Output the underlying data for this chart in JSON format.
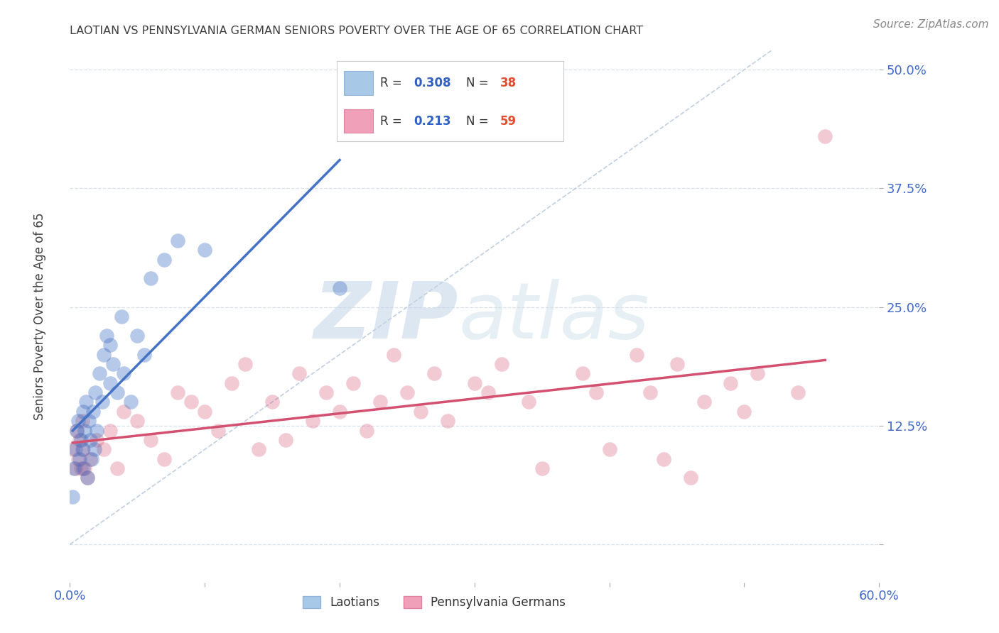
{
  "title": "LAOTIAN VS PENNSYLVANIA GERMAN SENIORS POVERTY OVER THE AGE OF 65 CORRELATION CHART",
  "source": "Source: ZipAtlas.com",
  "ylabel": "Seniors Poverty Over the Age of 65",
  "watermark_zip": "ZIP",
  "watermark_atlas": "atlas",
  "xlim": [
    0.0,
    0.6
  ],
  "ylim": [
    -0.04,
    0.52
  ],
  "xticks": [
    0.0,
    0.1,
    0.2,
    0.3,
    0.4,
    0.5,
    0.6
  ],
  "yticks": [
    0.0,
    0.125,
    0.25,
    0.375,
    0.5
  ],
  "ytick_labels": [
    "",
    "12.5%",
    "25.0%",
    "37.5%",
    "50.0%"
  ],
  "xtick_labels": [
    "0.0%",
    "",
    "",
    "",
    "",
    "",
    "60.0%"
  ],
  "legend_blue_R": "0.308",
  "legend_blue_N": "38",
  "legend_pink_R": "0.213",
  "legend_pink_N": "59",
  "blue_scatter_x": [
    0.002,
    0.003,
    0.004,
    0.005,
    0.006,
    0.007,
    0.008,
    0.009,
    0.01,
    0.01,
    0.011,
    0.012,
    0.013,
    0.014,
    0.015,
    0.016,
    0.017,
    0.018,
    0.019,
    0.02,
    0.022,
    0.024,
    0.025,
    0.027,
    0.03,
    0.03,
    0.032,
    0.035,
    0.038,
    0.04,
    0.045,
    0.05,
    0.055,
    0.06,
    0.07,
    0.08,
    0.1,
    0.2
  ],
  "blue_scatter_y": [
    0.05,
    0.08,
    0.1,
    0.12,
    0.13,
    0.09,
    0.11,
    0.1,
    0.08,
    0.14,
    0.12,
    0.15,
    0.07,
    0.13,
    0.11,
    0.09,
    0.14,
    0.1,
    0.16,
    0.12,
    0.18,
    0.15,
    0.2,
    0.22,
    0.17,
    0.21,
    0.19,
    0.16,
    0.24,
    0.18,
    0.15,
    0.22,
    0.2,
    0.28,
    0.3,
    0.32,
    0.31,
    0.27
  ],
  "pink_scatter_x": [
    0.002,
    0.004,
    0.005,
    0.006,
    0.007,
    0.008,
    0.009,
    0.01,
    0.011,
    0.013,
    0.015,
    0.02,
    0.025,
    0.03,
    0.035,
    0.04,
    0.05,
    0.06,
    0.07,
    0.08,
    0.09,
    0.1,
    0.11,
    0.12,
    0.13,
    0.14,
    0.15,
    0.16,
    0.17,
    0.18,
    0.19,
    0.2,
    0.21,
    0.22,
    0.23,
    0.24,
    0.25,
    0.26,
    0.27,
    0.28,
    0.3,
    0.31,
    0.32,
    0.34,
    0.35,
    0.38,
    0.39,
    0.4,
    0.42,
    0.43,
    0.44,
    0.45,
    0.46,
    0.47,
    0.49,
    0.5,
    0.51,
    0.54,
    0.56
  ],
  "pink_scatter_y": [
    0.1,
    0.08,
    0.12,
    0.09,
    0.11,
    0.08,
    0.13,
    0.1,
    0.08,
    0.07,
    0.09,
    0.11,
    0.1,
    0.12,
    0.08,
    0.14,
    0.13,
    0.11,
    0.09,
    0.16,
    0.15,
    0.14,
    0.12,
    0.17,
    0.19,
    0.1,
    0.15,
    0.11,
    0.18,
    0.13,
    0.16,
    0.14,
    0.17,
    0.12,
    0.15,
    0.2,
    0.16,
    0.14,
    0.18,
    0.13,
    0.17,
    0.16,
    0.19,
    0.15,
    0.08,
    0.18,
    0.16,
    0.1,
    0.2,
    0.16,
    0.09,
    0.19,
    0.07,
    0.15,
    0.17,
    0.14,
    0.18,
    0.16,
    0.43
  ],
  "blue_line_color": "#4472c4",
  "pink_line_color": "#d45070",
  "diag_line_color": "#b0c4d8",
  "grid_color": "#d8e0e8",
  "axis_label_color": "#4169c8",
  "title_color": "#404040",
  "background_color": "#ffffff"
}
